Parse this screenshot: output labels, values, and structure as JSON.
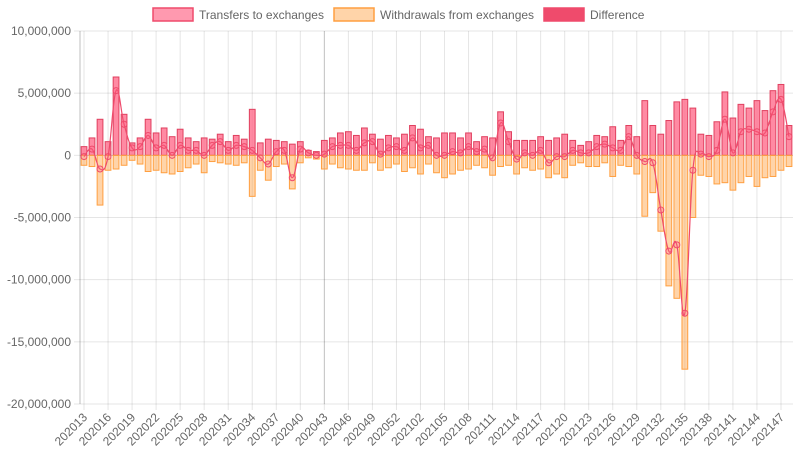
{
  "chart_data": {
    "type": "bar",
    "title": "",
    "xlabel": "",
    "ylabel": "",
    "ylim": [
      -20000000,
      10000000
    ],
    "yticks": [
      -20000000,
      -15000000,
      -10000000,
      -5000000,
      0,
      5000000,
      10000000
    ],
    "ytick_labels": [
      "-20,000,000",
      "-15,000,000",
      "-10,000,000",
      "-5,000,000",
      "0",
      "5,000,000",
      "10,000,000"
    ],
    "grid": true,
    "legend_position": "top-center",
    "categories": [
      "202013",
      "202014",
      "202015",
      "202016",
      "202017",
      "202018",
      "202019",
      "202020",
      "202021",
      "202022",
      "202023",
      "202024",
      "202025",
      "202026",
      "202027",
      "202028",
      "202029",
      "202030",
      "202031",
      "202032",
      "202033",
      "202034",
      "202035",
      "202036",
      "202037",
      "202038",
      "202039",
      "202040",
      "202041",
      "202042",
      "202043",
      "202044",
      "202045",
      "202046",
      "202047",
      "202048",
      "202049",
      "202050",
      "202051",
      "202052",
      "202053",
      "202101",
      "202102",
      "202103",
      "202104",
      "202105",
      "202106",
      "202107",
      "202108",
      "202109",
      "202110",
      "202111",
      "202112",
      "202113",
      "202114",
      "202115",
      "202116",
      "202117",
      "202118",
      "202119",
      "202120",
      "202121",
      "202122",
      "202123",
      "202124",
      "202125",
      "202126",
      "202127",
      "202128",
      "202129",
      "202130",
      "202131",
      "202132",
      "202133",
      "202134",
      "202135",
      "202136",
      "202137",
      "202138",
      "202139",
      "202140",
      "202141",
      "202142",
      "202143",
      "202144",
      "202145",
      "202146",
      "202147",
      "202148"
    ],
    "x_tick_labels": [
      "202013",
      "202016",
      "202019",
      "202022",
      "202025",
      "202028",
      "202031",
      "202034",
      "202037",
      "202040",
      "202043",
      "202046",
      "202049",
      "202052",
      "202102",
      "202105",
      "202108",
      "202111",
      "202114",
      "202117",
      "202120",
      "202123",
      "202126",
      "202129",
      "202132",
      "202135",
      "202138",
      "202141",
      "202144",
      "202147"
    ],
    "series": [
      {
        "name": "Transfers to exchanges",
        "kind": "bar",
        "color": "#ff6384",
        "values": [
          700000,
          1400000,
          2900000,
          1100000,
          6300000,
          3300000,
          1000000,
          1400000,
          2900000,
          1800000,
          2200000,
          1500000,
          2100000,
          1400000,
          1100000,
          1400000,
          1300000,
          1700000,
          1100000,
          1600000,
          1300000,
          3700000,
          1000000,
          1300000,
          1200000,
          1100000,
          900000,
          1100000,
          400000,
          300000,
          1200000,
          1400000,
          1800000,
          1900000,
          1600000,
          2200000,
          1700000,
          1300000,
          1600000,
          1400000,
          1700000,
          2400000,
          2100000,
          1500000,
          1400000,
          1800000,
          1800000,
          1400000,
          1800000,
          1100000,
          1500000,
          1400000,
          3500000,
          1900000,
          1200000,
          1200000,
          1200000,
          1500000,
          1200000,
          1400000,
          1700000,
          1200000,
          800000,
          1100000,
          1600000,
          1500000,
          2300000,
          1200000,
          2400000,
          1500000,
          4400000,
          2400000,
          1700000,
          2800000,
          4300000,
          4500000,
          3800000,
          1700000,
          1600000,
          2700000,
          5100000,
          3000000,
          4100000,
          3800000,
          4400000,
          3600000,
          5200000,
          5700000,
          2400000
        ]
      },
      {
        "name": "Withdrawals from exchanges",
        "kind": "bar",
        "color": "#ff9f40",
        "values": [
          -800000,
          -900000,
          -4000000,
          -1200000,
          -1100000,
          -800000,
          -400000,
          -700000,
          -1300000,
          -1200000,
          -1400000,
          -1500000,
          -1300000,
          -1000000,
          -700000,
          -1400000,
          -500000,
          -600000,
          -700000,
          -800000,
          -600000,
          -3300000,
          -1200000,
          -2000000,
          -900000,
          -700000,
          -2700000,
          -600000,
          -200000,
          -300000,
          -1100000,
          -700000,
          -1000000,
          -1100000,
          -1200000,
          -1200000,
          -600000,
          -1200000,
          -1000000,
          -700000,
          -1300000,
          -1000000,
          -1500000,
          -700000,
          -1400000,
          -1800000,
          -1500000,
          -1200000,
          -1100000,
          -800000,
          -1000000,
          -1600000,
          -900000,
          -800000,
          -1500000,
          -1000000,
          -1200000,
          -1100000,
          -1800000,
          -1500000,
          -1800000,
          -800000,
          -600000,
          -900000,
          -900000,
          -600000,
          -1700000,
          -800000,
          -900000,
          -1500000,
          -4900000,
          -3000000,
          -6100000,
          -10500000,
          -11500000,
          -17200000,
          -5000000,
          -1600000,
          -1700000,
          -2300000,
          -2200000,
          -2800000,
          -2200000,
          -1700000,
          -2500000,
          -1800000,
          -1700000,
          -1200000,
          -900000
        ]
      },
      {
        "name": "Difference",
        "kind": "line",
        "color": "#ef4b6c",
        "values": [
          -100000,
          500000,
          -1100000,
          -100000,
          5200000,
          2500000,
          600000,
          700000,
          1600000,
          600000,
          800000,
          0,
          800000,
          400000,
          400000,
          0,
          800000,
          1100000,
          400000,
          800000,
          700000,
          400000,
          -200000,
          -700000,
          300000,
          400000,
          -1800000,
          500000,
          200000,
          0,
          100000,
          700000,
          800000,
          800000,
          400000,
          1000000,
          1100000,
          100000,
          600000,
          700000,
          400000,
          1400000,
          600000,
          800000,
          0,
          0,
          300000,
          200000,
          700000,
          300000,
          500000,
          -200000,
          2600000,
          1100000,
          -300000,
          200000,
          0,
          400000,
          -600000,
          -100000,
          -100000,
          400000,
          200000,
          200000,
          700000,
          900000,
          600000,
          400000,
          1500000,
          0,
          -500000,
          -600000,
          -4400000,
          -7700000,
          -7200000,
          -12700000,
          -1200000,
          100000,
          -100000,
          400000,
          2900000,
          200000,
          1900000,
          2100000,
          1900000,
          1800000,
          3500000,
          4500000,
          1500000
        ]
      }
    ]
  }
}
